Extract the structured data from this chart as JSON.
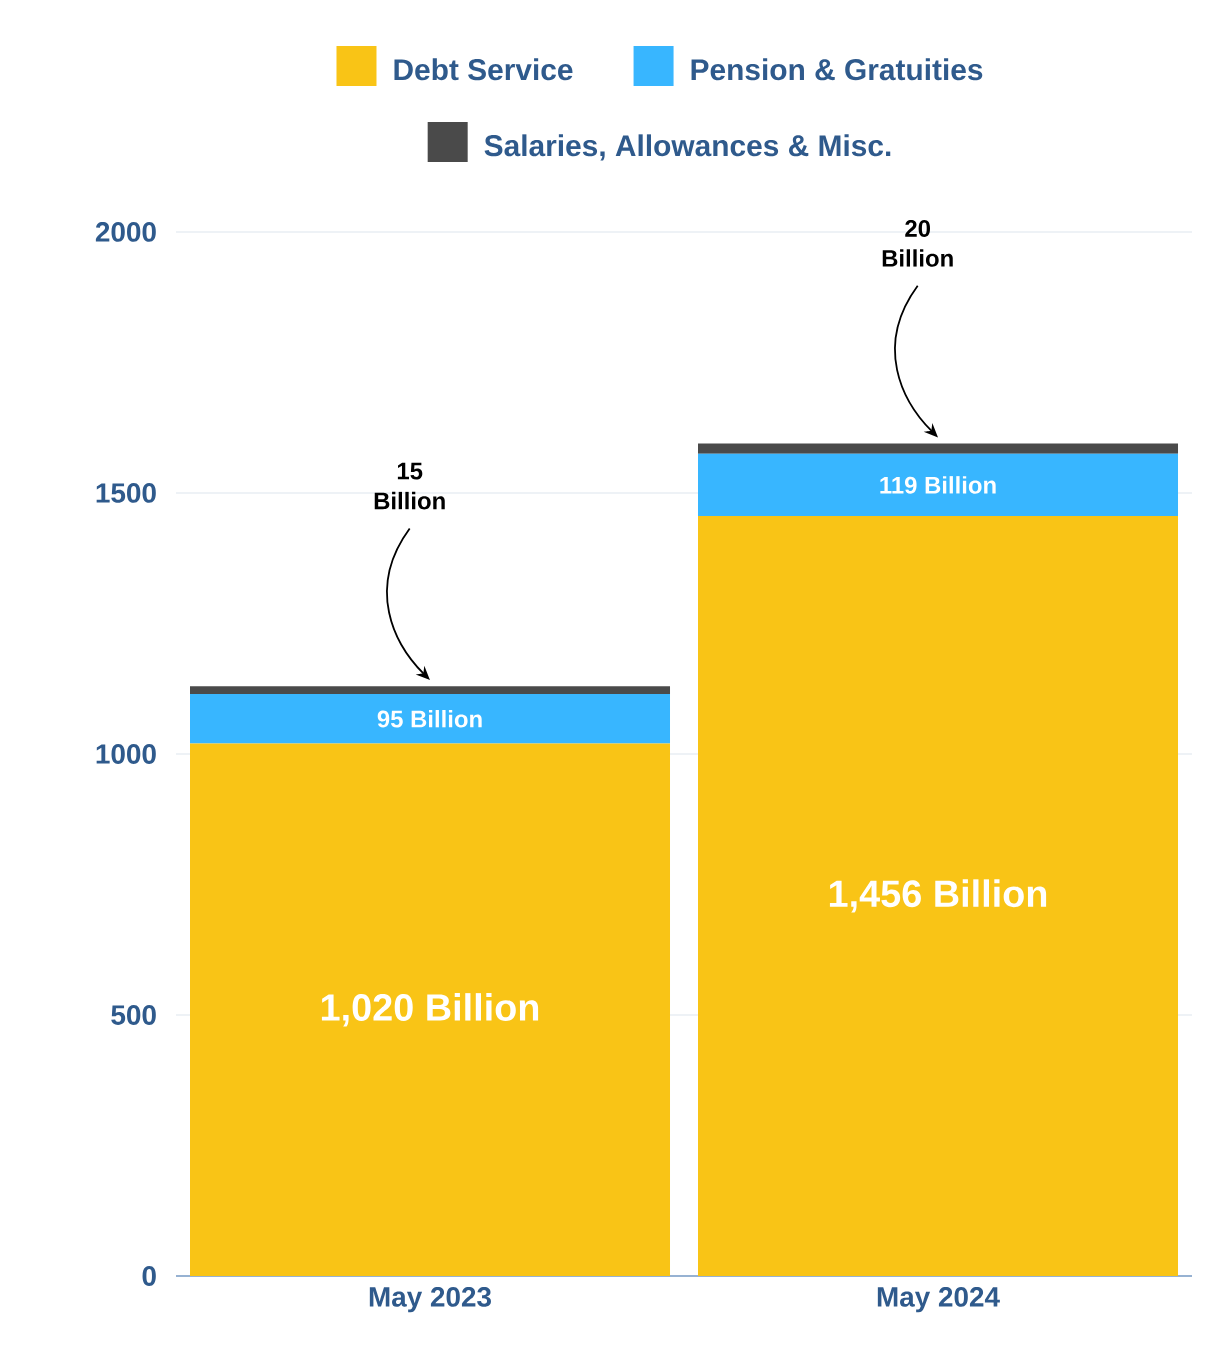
{
  "chart_data": {
    "type": "bar",
    "stacked": true,
    "categories": [
      "May 2023",
      "May 2024"
    ],
    "series": [
      {
        "name": "Debt Service",
        "color": "#f9c416",
        "values": [
          1020,
          1456
        ],
        "value_labels": [
          "1,020 Billion",
          "1,456 Billion"
        ]
      },
      {
        "name": "Pension & Gratuities",
        "color": "#38b6ff",
        "values": [
          95,
          119
        ],
        "value_labels": [
          "95 Billion",
          "119 Billion"
        ]
      },
      {
        "name": "Salaries, Allowances & Misc.",
        "color": "#4a4a4a",
        "values": [
          15,
          20
        ],
        "value_labels": [
          "15 Billion",
          "20 Billion"
        ]
      }
    ],
    "ylim": [
      0,
      2000
    ],
    "yticks": [
      0,
      500,
      1000,
      1500,
      2000
    ],
    "grid": "y",
    "legend": "top"
  }
}
